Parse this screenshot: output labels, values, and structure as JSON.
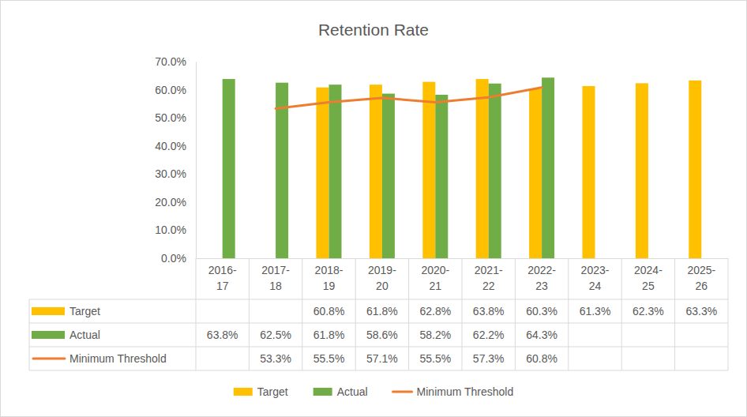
{
  "chart_data": {
    "type": "bar",
    "title": "Retention Rate",
    "categories": [
      "2016-17",
      "2017-18",
      "2018-19",
      "2019-20",
      "2020-21",
      "2021-22",
      "2022-23",
      "2023-24",
      "2024-25",
      "2025-26"
    ],
    "series": [
      {
        "name": "Target",
        "type": "bar",
        "color": "#FFC000",
        "values": [
          null,
          null,
          60.8,
          61.8,
          62.8,
          63.8,
          60.3,
          61.3,
          62.3,
          63.3
        ],
        "value_labels": [
          null,
          null,
          "60.8%",
          "61.8%",
          "62.8%",
          "63.8%",
          "60.3%",
          "61.3%",
          "62.3%",
          "63.3%"
        ]
      },
      {
        "name": "Actual",
        "type": "bar",
        "color": "#70AD47",
        "values": [
          63.8,
          62.5,
          61.8,
          58.6,
          58.2,
          62.2,
          64.3,
          null,
          null,
          null
        ],
        "value_labels": [
          "63.8%",
          "62.5%",
          "61.8%",
          "58.6%",
          "58.2%",
          "62.2%",
          "64.3%",
          null,
          null,
          null
        ]
      },
      {
        "name": "Minimum Threshold",
        "type": "line",
        "color": "#ED7D31",
        "values": [
          null,
          53.3,
          55.5,
          57.1,
          55.5,
          57.3,
          60.8,
          null,
          null,
          null
        ],
        "value_labels": [
          null,
          "53.3%",
          "55.5%",
          "57.1%",
          "55.5%",
          "57.3%",
          "60.8%",
          null,
          null,
          null
        ]
      }
    ],
    "ylim": [
      0,
      70
    ],
    "yticks": [
      {
        "value": 0,
        "label": "0.0%"
      },
      {
        "value": 10,
        "label": "10.0%"
      },
      {
        "value": 20,
        "label": "20.0%"
      },
      {
        "value": 30,
        "label": "30.0%"
      },
      {
        "value": 40,
        "label": "40.0%"
      },
      {
        "value": 50,
        "label": "50.0%"
      },
      {
        "value": 60,
        "label": "60.0%"
      },
      {
        "value": 70,
        "label": "70.0%"
      }
    ],
    "grid": false,
    "legend": "bottom"
  }
}
